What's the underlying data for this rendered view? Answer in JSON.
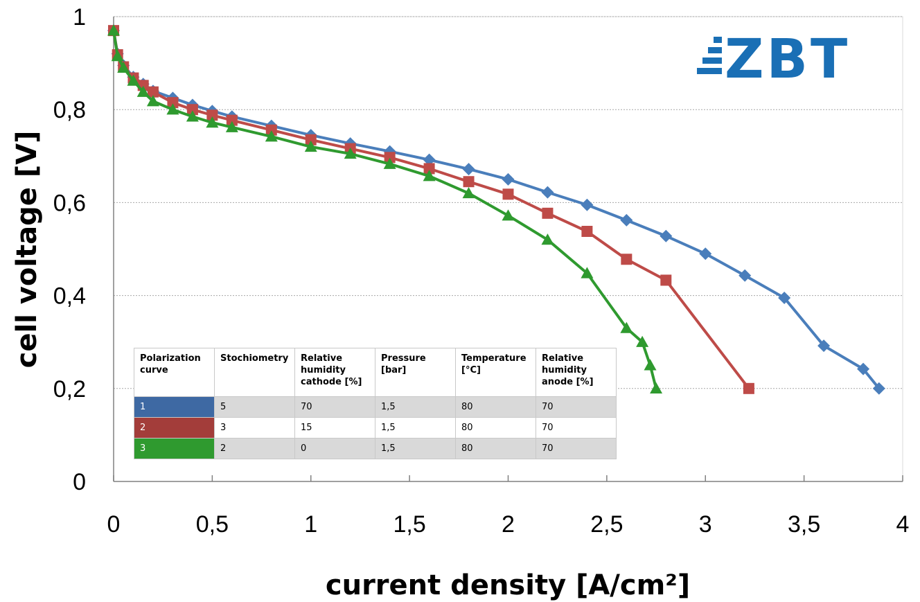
{
  "chart_data": {
    "type": "line",
    "xlabel": "current density [A/cm²]",
    "ylabel": "cell voltage [V]",
    "xlim": [
      0,
      4
    ],
    "ylim": [
      0,
      1
    ],
    "x_ticks": [
      "0",
      "0,5",
      "1",
      "1,5",
      "2",
      "2,5",
      "3",
      "3,5",
      "4"
    ],
    "x_tick_values": [
      0,
      0.5,
      1,
      1.5,
      2,
      2.5,
      3,
      3.5,
      4
    ],
    "y_ticks": [
      "0",
      "0,2",
      "0,4",
      "0,6",
      "0,8",
      "1"
    ],
    "y_tick_values": [
      0,
      0.2,
      0.4,
      0.6,
      0.8,
      1
    ],
    "grid": "horizontal dotted",
    "series": [
      {
        "color": "#4a7ebb",
        "marker": "diamond",
        "points": [
          [
            0,
            0.97
          ],
          [
            0.02,
            0.92
          ],
          [
            0.05,
            0.895
          ],
          [
            0.1,
            0.87
          ],
          [
            0.15,
            0.855
          ],
          [
            0.2,
            0.84
          ],
          [
            0.3,
            0.825
          ],
          [
            0.4,
            0.81
          ],
          [
            0.5,
            0.797
          ],
          [
            0.6,
            0.785
          ],
          [
            0.8,
            0.765
          ],
          [
            1.0,
            0.745
          ],
          [
            1.2,
            0.727
          ],
          [
            1.4,
            0.71
          ],
          [
            1.6,
            0.692
          ],
          [
            1.8,
            0.672
          ],
          [
            2.0,
            0.65
          ],
          [
            2.2,
            0.622
          ],
          [
            2.4,
            0.595
          ],
          [
            2.6,
            0.562
          ],
          [
            2.8,
            0.528
          ],
          [
            3.0,
            0.49
          ],
          [
            3.2,
            0.443
          ],
          [
            3.4,
            0.395
          ],
          [
            3.6,
            0.292
          ],
          [
            3.8,
            0.242
          ],
          [
            3.88,
            0.2
          ]
        ]
      },
      {
        "color": "#be4b48",
        "marker": "square",
        "points": [
          [
            0,
            0.97
          ],
          [
            0.02,
            0.918
          ],
          [
            0.05,
            0.892
          ],
          [
            0.1,
            0.868
          ],
          [
            0.15,
            0.852
          ],
          [
            0.2,
            0.838
          ],
          [
            0.3,
            0.815
          ],
          [
            0.4,
            0.8
          ],
          [
            0.5,
            0.788
          ],
          [
            0.6,
            0.777
          ],
          [
            0.8,
            0.756
          ],
          [
            1.0,
            0.735
          ],
          [
            1.2,
            0.716
          ],
          [
            1.4,
            0.697
          ],
          [
            1.6,
            0.673
          ],
          [
            1.8,
            0.645
          ],
          [
            2.0,
            0.618
          ],
          [
            2.2,
            0.577
          ],
          [
            2.4,
            0.538
          ],
          [
            2.6,
            0.478
          ],
          [
            2.8,
            0.433
          ],
          [
            3.22,
            0.2
          ]
        ]
      },
      {
        "color": "#2f9a2f",
        "marker": "triangle",
        "points": [
          [
            0,
            0.97
          ],
          [
            0.02,
            0.915
          ],
          [
            0.05,
            0.89
          ],
          [
            0.1,
            0.862
          ],
          [
            0.15,
            0.838
          ],
          [
            0.2,
            0.818
          ],
          [
            0.3,
            0.8
          ],
          [
            0.4,
            0.785
          ],
          [
            0.5,
            0.772
          ],
          [
            0.6,
            0.762
          ],
          [
            0.8,
            0.742
          ],
          [
            1.0,
            0.72
          ],
          [
            1.2,
            0.705
          ],
          [
            1.4,
            0.683
          ],
          [
            1.6,
            0.657
          ],
          [
            1.8,
            0.62
          ],
          [
            2.0,
            0.572
          ],
          [
            2.2,
            0.52
          ],
          [
            2.4,
            0.448
          ],
          [
            2.6,
            0.33
          ],
          [
            2.68,
            0.3
          ],
          [
            2.72,
            0.25
          ],
          [
            2.75,
            0.2
          ]
        ]
      }
    ]
  },
  "logo": {
    "text": "ZBT",
    "color": "#1a6fb5"
  },
  "table": {
    "headers": [
      [
        "Polarization",
        "curve"
      ],
      [
        "Stochiometry"
      ],
      [
        "Relative",
        "humidity",
        "cathode [%]"
      ],
      [
        "Pressure",
        "[bar]"
      ],
      [
        "Temperature",
        "[°C]"
      ],
      [
        "Relative",
        "humidity",
        "anode [%]"
      ]
    ],
    "rows": [
      {
        "curve": "1",
        "curve_color": "#3e69a3",
        "stoichiometry": "5",
        "rh_cathode": "70",
        "pressure": "1,5",
        "temperature": "80",
        "rh_anode": "70"
      },
      {
        "curve": "2",
        "curve_color": "#a33d3a",
        "stoichiometry": "3",
        "rh_cathode": "15",
        "pressure": "1,5",
        "temperature": "80",
        "rh_anode": "70"
      },
      {
        "curve": "3",
        "curve_color": "#2f9a2f",
        "stoichiometry": "2",
        "rh_cathode": "0",
        "pressure": "1,5",
        "temperature": "80",
        "rh_anode": "70"
      }
    ]
  }
}
